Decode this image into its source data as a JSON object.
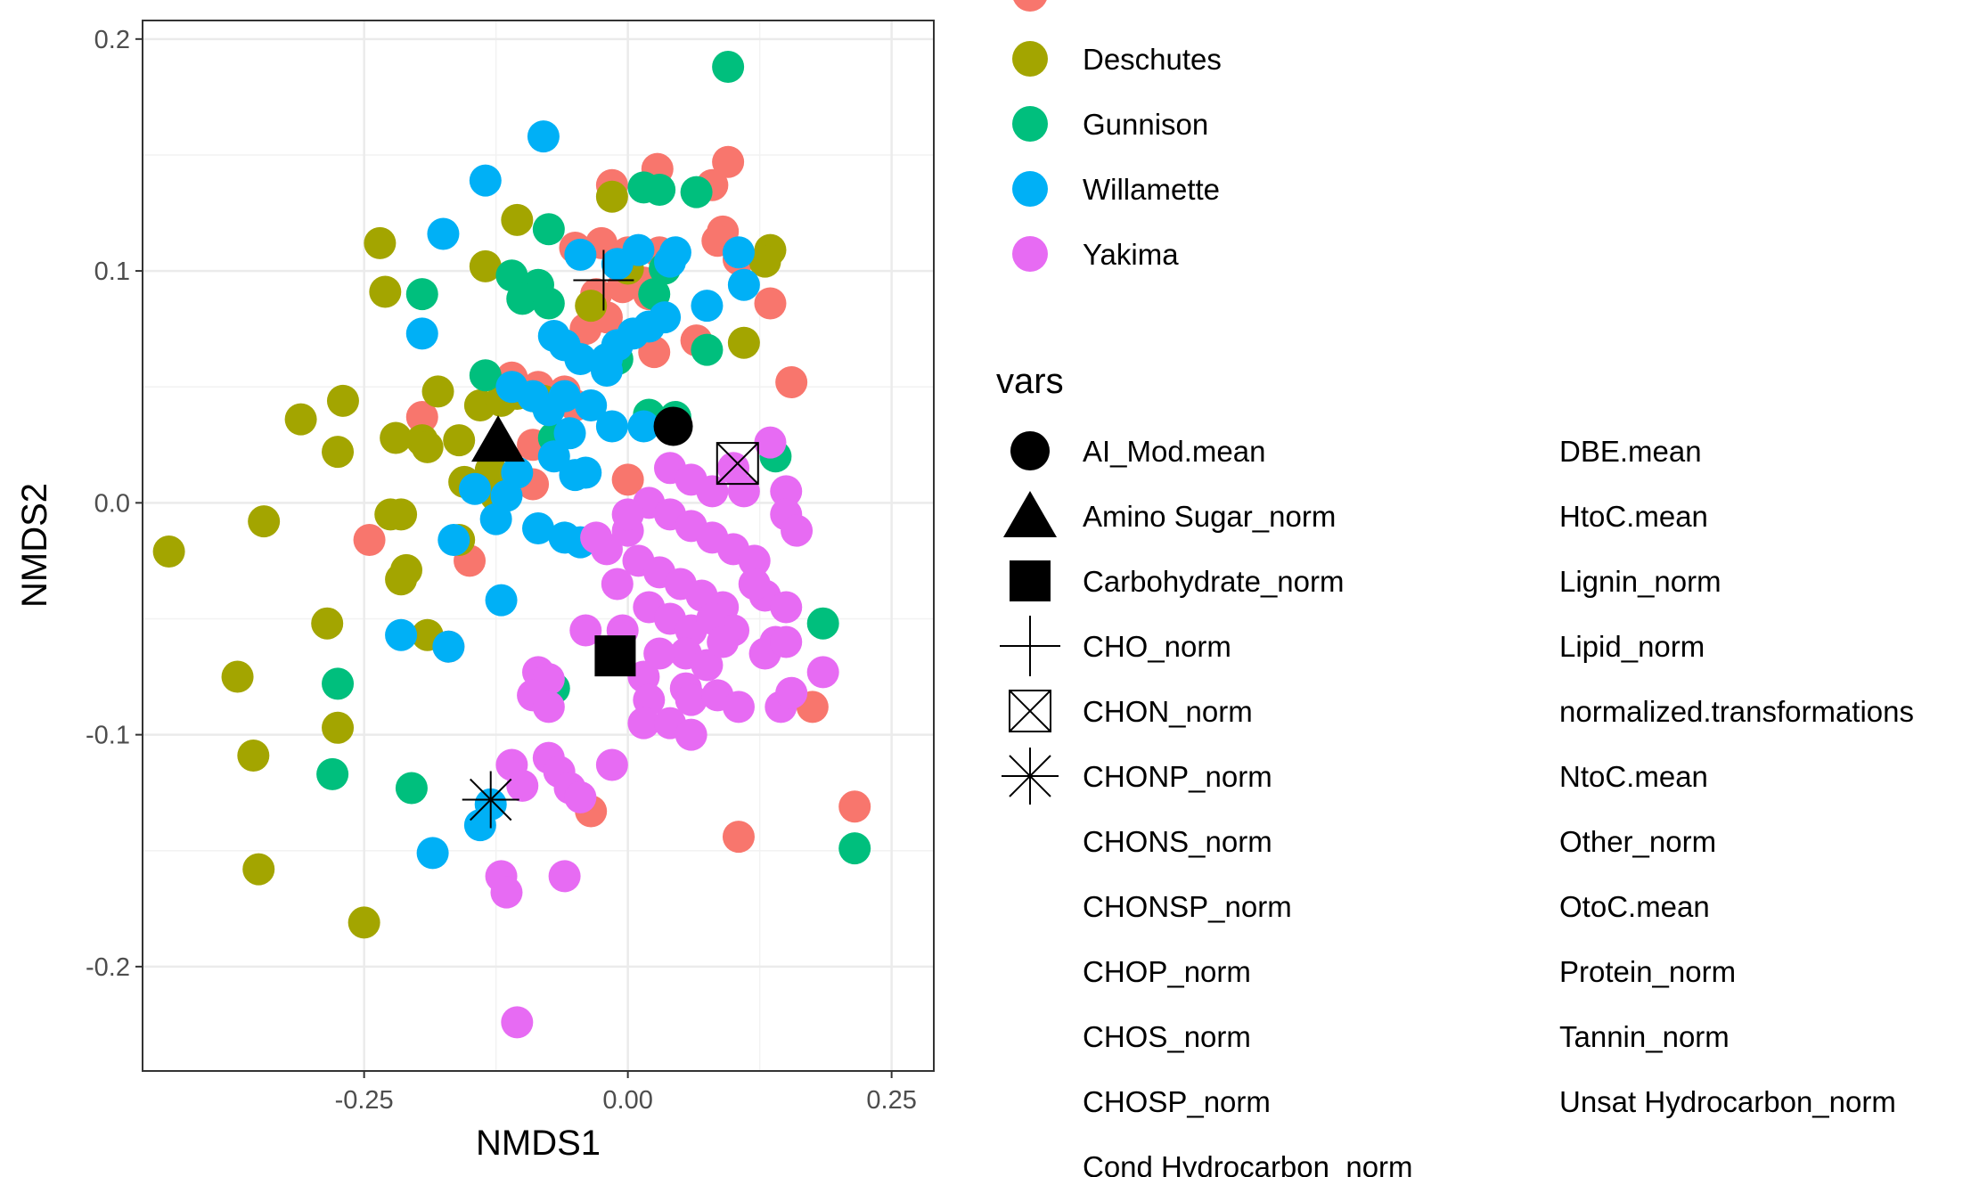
{
  "chart_data": {
    "type": "scatter",
    "xlabel": "NMDS1",
    "ylabel": "NMDS2",
    "xlim": [
      -0.46,
      0.29
    ],
    "ylim": [
      -0.245,
      0.208
    ],
    "xticks": [
      -0.25,
      0.0,
      0.25
    ],
    "xtick_labels": [
      "-0.25",
      "0.00",
      "0.25"
    ],
    "yticks": [
      -0.2,
      -0.1,
      0.0,
      0.1,
      0.2
    ],
    "ytick_labels": [
      "-0.2",
      "-0.1",
      "0.0",
      "0.1",
      "0.2"
    ],
    "grid": true,
    "legend_position": "right",
    "color_legend": {
      "entries": [
        {
          "name": "",
          "color": "#F8766D"
        },
        {
          "name": "Deschutes",
          "color": "#A3A500"
        },
        {
          "name": "Gunnison",
          "color": "#00BF7D"
        },
        {
          "name": "Willamette",
          "color": "#00B0F6"
        },
        {
          "name": "Yakima",
          "color": "#E76BF3"
        }
      ]
    },
    "series": [
      {
        "name": "",
        "color": "#F8766D",
        "points": [
          [
            -0.015,
            0.137
          ],
          [
            0.028,
            0.144
          ],
          [
            0.095,
            0.147
          ],
          [
            0.08,
            0.137
          ],
          [
            -0.05,
            0.11
          ],
          [
            -0.025,
            0.112
          ],
          [
            0.0,
            0.108
          ],
          [
            0.03,
            0.108
          ],
          [
            0.09,
            0.117
          ],
          [
            0.085,
            0.113
          ],
          [
            0.105,
            0.105
          ],
          [
            0.135,
            0.086
          ],
          [
            0.015,
            0.095
          ],
          [
            -0.005,
            0.093
          ],
          [
            -0.02,
            0.08
          ],
          [
            -0.04,
            0.075
          ],
          [
            0.025,
            0.065
          ],
          [
            0.065,
            0.07
          ],
          [
            0.155,
            0.052
          ],
          [
            -0.11,
            0.054
          ],
          [
            -0.085,
            0.05
          ],
          [
            -0.05,
            0.042
          ],
          [
            -0.06,
            0.048
          ],
          [
            -0.195,
            0.037
          ],
          [
            -0.09,
            0.025
          ],
          [
            0.0,
            0.01
          ],
          [
            -0.09,
            0.008
          ],
          [
            -0.245,
            -0.016
          ],
          [
            -0.15,
            -0.025
          ],
          [
            -0.17,
            -0.062
          ],
          [
            -0.035,
            -0.133
          ],
          [
            0.175,
            -0.088
          ],
          [
            0.215,
            -0.131
          ],
          [
            0.105,
            -0.144
          ],
          [
            0.02,
            0.09
          ],
          [
            -0.03,
            0.09
          ]
        ]
      },
      {
        "name": "Deschutes",
        "color": "#A3A500",
        "points": [
          [
            -0.435,
            -0.021
          ],
          [
            -0.345,
            -0.008
          ],
          [
            -0.31,
            0.036
          ],
          [
            -0.27,
            0.044
          ],
          [
            -0.275,
            0.022
          ],
          [
            -0.235,
            0.112
          ],
          [
            -0.23,
            0.091
          ],
          [
            -0.22,
            0.028
          ],
          [
            -0.195,
            0.027
          ],
          [
            -0.19,
            0.024
          ],
          [
            -0.18,
            0.048
          ],
          [
            -0.16,
            0.027
          ],
          [
            -0.135,
            0.102
          ],
          [
            -0.105,
            0.122
          ],
          [
            -0.14,
            0.042
          ],
          [
            -0.12,
            0.044
          ],
          [
            -0.105,
            0.047
          ],
          [
            -0.08,
            0.044
          ],
          [
            -0.13,
            0.014
          ],
          [
            -0.12,
            0.008
          ],
          [
            -0.155,
            0.009
          ],
          [
            -0.16,
            -0.016
          ],
          [
            -0.225,
            -0.005
          ],
          [
            -0.215,
            -0.005
          ],
          [
            -0.215,
            -0.033
          ],
          [
            -0.21,
            -0.029
          ],
          [
            -0.285,
            -0.052
          ],
          [
            -0.19,
            -0.057
          ],
          [
            -0.37,
            -0.075
          ],
          [
            -0.355,
            -0.109
          ],
          [
            -0.275,
            -0.097
          ],
          [
            -0.35,
            -0.158
          ],
          [
            -0.25,
            -0.181
          ],
          [
            -0.015,
            0.132
          ],
          [
            0.135,
            0.109
          ],
          [
            0.13,
            0.104
          ],
          [
            0.11,
            0.069
          ],
          [
            -0.035,
            0.085
          ],
          [
            0.0,
            0.101
          ],
          [
            -0.125,
            0.003
          ]
        ]
      },
      {
        "name": "Gunnison",
        "color": "#00BF7D",
        "points": [
          [
            0.095,
            0.188
          ],
          [
            0.015,
            0.136
          ],
          [
            0.03,
            0.135
          ],
          [
            0.065,
            0.134
          ],
          [
            -0.075,
            0.118
          ],
          [
            -0.11,
            0.098
          ],
          [
            -0.085,
            0.094
          ],
          [
            -0.1,
            0.088
          ],
          [
            -0.075,
            0.086
          ],
          [
            -0.195,
            0.09
          ],
          [
            -0.135,
            0.055
          ],
          [
            -0.07,
            0.028
          ],
          [
            -0.01,
            0.062
          ],
          [
            0.035,
            0.101
          ],
          [
            0.025,
            0.09
          ],
          [
            0.045,
            0.037
          ],
          [
            0.075,
            0.066
          ],
          [
            0.14,
            0.02
          ],
          [
            0.185,
            -0.052
          ],
          [
            -0.275,
            -0.078
          ],
          [
            -0.28,
            -0.117
          ],
          [
            -0.205,
            -0.123
          ],
          [
            -0.07,
            -0.08
          ],
          [
            0.215,
            -0.149
          ],
          [
            0.02,
            0.038
          ]
        ]
      },
      {
        "name": "Willamette",
        "color": "#00B0F6",
        "points": [
          [
            -0.08,
            0.158
          ],
          [
            -0.135,
            0.139
          ],
          [
            -0.175,
            0.116
          ],
          [
            -0.195,
            0.073
          ],
          [
            -0.045,
            0.107
          ],
          [
            -0.01,
            0.103
          ],
          [
            0.01,
            0.109
          ],
          [
            0.045,
            0.108
          ],
          [
            0.04,
            0.104
          ],
          [
            0.105,
            0.108
          ],
          [
            0.11,
            0.094
          ],
          [
            0.075,
            0.085
          ],
          [
            0.035,
            0.08
          ],
          [
            0.02,
            0.076
          ],
          [
            0.005,
            0.073
          ],
          [
            -0.01,
            0.068
          ],
          [
            -0.07,
            0.072
          ],
          [
            -0.06,
            0.068
          ],
          [
            -0.045,
            0.062
          ],
          [
            -0.02,
            0.057
          ],
          [
            -0.02,
            0.062
          ],
          [
            -0.09,
            0.046
          ],
          [
            -0.075,
            0.04
          ],
          [
            -0.06,
            0.046
          ],
          [
            -0.035,
            0.042
          ],
          [
            -0.055,
            0.03
          ],
          [
            -0.015,
            0.033
          ],
          [
            0.015,
            0.033
          ],
          [
            -0.07,
            0.02
          ],
          [
            -0.05,
            0.012
          ],
          [
            -0.04,
            0.013
          ],
          [
            -0.105,
            0.013
          ],
          [
            -0.115,
            0.003
          ],
          [
            -0.145,
            0.006
          ],
          [
            -0.125,
            -0.007
          ],
          [
            -0.085,
            -0.011
          ],
          [
            -0.06,
            -0.015
          ],
          [
            -0.045,
            -0.017
          ],
          [
            -0.165,
            -0.016
          ],
          [
            -0.12,
            -0.042
          ],
          [
            -0.215,
            -0.057
          ],
          [
            -0.17,
            -0.062
          ],
          [
            -0.185,
            -0.151
          ],
          [
            -0.14,
            -0.139
          ],
          [
            -0.13,
            -0.13
          ],
          [
            -0.11,
            0.05
          ]
        ]
      },
      {
        "name": "Yakima",
        "color": "#E76BF3",
        "points": [
          [
            0.135,
            0.026
          ],
          [
            0.1,
            0.015
          ],
          [
            0.15,
            0.005
          ],
          [
            0.15,
            -0.005
          ],
          [
            0.16,
            -0.012
          ],
          [
            0.04,
            0.015
          ],
          [
            0.06,
            0.01
          ],
          [
            0.08,
            0.005
          ],
          [
            0.02,
            0.0
          ],
          [
            0.04,
            -0.005
          ],
          [
            0.06,
            -0.01
          ],
          [
            0.08,
            -0.015
          ],
          [
            0.1,
            -0.02
          ],
          [
            0.12,
            -0.025
          ],
          [
            0.0,
            -0.012
          ],
          [
            -0.02,
            -0.02
          ],
          [
            -0.03,
            -0.015
          ],
          [
            0.01,
            -0.025
          ],
          [
            0.03,
            -0.03
          ],
          [
            0.05,
            -0.035
          ],
          [
            0.07,
            -0.04
          ],
          [
            0.09,
            -0.045
          ],
          [
            -0.01,
            -0.035
          ],
          [
            0.02,
            -0.045
          ],
          [
            0.04,
            -0.05
          ],
          [
            0.06,
            -0.055
          ],
          [
            0.08,
            -0.05
          ],
          [
            0.1,
            -0.055
          ],
          [
            0.13,
            -0.04
          ],
          [
            0.15,
            -0.045
          ],
          [
            0.14,
            -0.06
          ],
          [
            0.13,
            -0.065
          ],
          [
            0.15,
            -0.06
          ],
          [
            0.055,
            -0.065
          ],
          [
            0.075,
            -0.07
          ],
          [
            0.09,
            -0.06
          ],
          [
            -0.04,
            -0.055
          ],
          [
            0.03,
            -0.065
          ],
          [
            0.015,
            -0.075
          ],
          [
            0.055,
            -0.08
          ],
          [
            0.06,
            -0.085
          ],
          [
            0.085,
            -0.083
          ],
          [
            0.105,
            -0.088
          ],
          [
            0.145,
            -0.088
          ],
          [
            0.155,
            -0.082
          ],
          [
            0.185,
            -0.073
          ],
          [
            -0.085,
            -0.073
          ],
          [
            -0.075,
            -0.076
          ],
          [
            -0.09,
            -0.083
          ],
          [
            -0.075,
            -0.088
          ],
          [
            0.02,
            -0.085
          ],
          [
            0.015,
            -0.095
          ],
          [
            0.04,
            -0.095
          ],
          [
            0.06,
            -0.1
          ],
          [
            -0.11,
            -0.113
          ],
          [
            -0.075,
            -0.11
          ],
          [
            -0.065,
            -0.116
          ],
          [
            -0.1,
            -0.122
          ],
          [
            -0.055,
            -0.123
          ],
          [
            -0.045,
            -0.127
          ],
          [
            -0.015,
            -0.113
          ],
          [
            -0.12,
            -0.161
          ],
          [
            -0.06,
            -0.161
          ],
          [
            -0.115,
            -0.168
          ],
          [
            -0.105,
            -0.224
          ],
          [
            0.11,
            0.005
          ],
          [
            0.12,
            -0.035
          ],
          [
            0.0,
            -0.005
          ],
          [
            -0.005,
            -0.055
          ]
        ]
      }
    ],
    "vars_legend": {
      "title": "vars",
      "col1": [
        {
          "label": "AI_Mod.mean",
          "shape": "circle"
        },
        {
          "label": "Amino Sugar_norm",
          "shape": "triangle"
        },
        {
          "label": "Carbohydrate_norm",
          "shape": "square"
        },
        {
          "label": "CHO_norm",
          "shape": "plus"
        },
        {
          "label": "CHON_norm",
          "shape": "boxed-x"
        },
        {
          "label": "CHONP_norm",
          "shape": "asterisk"
        },
        {
          "label": "CHONS_norm",
          "shape": "none"
        },
        {
          "label": "CHONSP_norm",
          "shape": "none"
        },
        {
          "label": "CHOP_norm",
          "shape": "none"
        },
        {
          "label": "CHOS_norm",
          "shape": "none"
        },
        {
          "label": "CHOSP_norm",
          "shape": "none"
        },
        {
          "label": "Cond Hydrocarbon_norm",
          "shape": "none"
        }
      ],
      "col2": [
        "DBE.mean",
        "HtoC.mean",
        "Lignin_norm",
        "Lipid_norm",
        "normalized.transformations",
        "NtoC.mean",
        "Other_norm",
        "OtoC.mean",
        "Protein_norm",
        "Tannin_norm",
        "Unsat Hydrocarbon_norm"
      ]
    },
    "var_points": [
      {
        "name": "AI_Mod.mean",
        "shape": "circle",
        "x": 0.043,
        "y": 0.033
      },
      {
        "name": "Amino Sugar_norm",
        "shape": "triangle",
        "x": -0.123,
        "y": 0.027
      },
      {
        "name": "Carbohydrate_norm",
        "shape": "square",
        "x": -0.012,
        "y": -0.066
      },
      {
        "name": "CHO_norm",
        "shape": "plus",
        "x": -0.023,
        "y": 0.096
      },
      {
        "name": "CHON_norm",
        "shape": "boxed-x",
        "x": 0.104,
        "y": 0.017
      },
      {
        "name": "CHONP_norm",
        "shape": "asterisk",
        "x": -0.13,
        "y": -0.128
      }
    ]
  }
}
